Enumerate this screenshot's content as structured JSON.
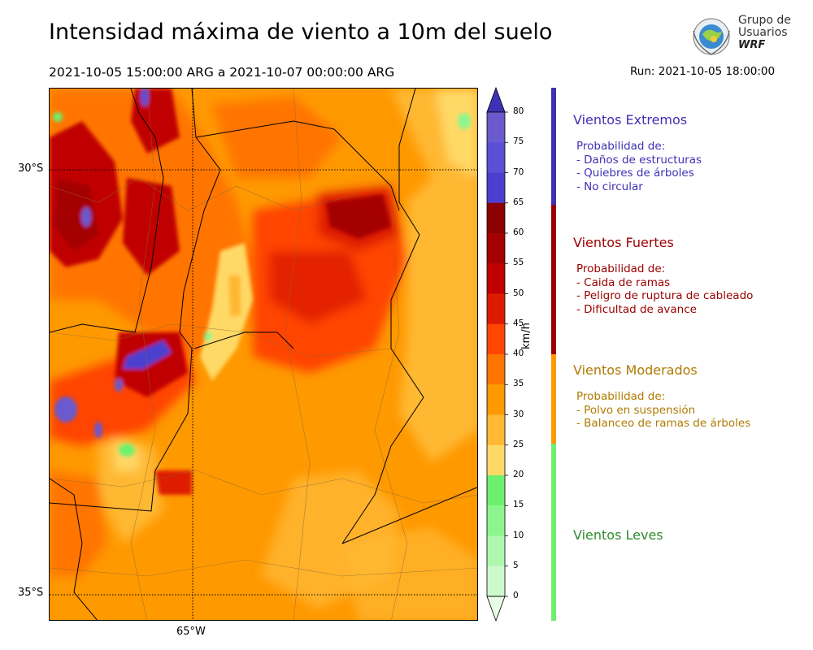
{
  "header": {
    "title": "Intensidad máxima de viento a 10m del suelo",
    "period": "2021-10-05 15:00:00 ARG  a  2021-10-07 00:00:00 ARG",
    "run": "Run: 2021-10-05 18:00:00"
  },
  "logo": {
    "line1": "Grupo de",
    "line2": "Usuarios",
    "line3": "WRF"
  },
  "map": {
    "lat_labels": [
      "30°S",
      "35°S"
    ],
    "lon_labels": [
      "65°W"
    ]
  },
  "colorbar": {
    "unit": "km/h",
    "ticks": [
      "80",
      "75",
      "70",
      "65",
      "60",
      "55",
      "50",
      "45",
      "40",
      "35",
      "30",
      "25",
      "20",
      "15",
      "10",
      "5",
      "0"
    ],
    "colors": [
      "#6a5acd",
      "#5b4fd6",
      "#4c3fcf",
      "#8b0000",
      "#a50000",
      "#c00000",
      "#dd1a00",
      "#ff4500",
      "#ff7400",
      "#ff9900",
      "#ffb833",
      "#ffd966",
      "#6ef06e",
      "#8df58d",
      "#aef7ae",
      "#cdfacd",
      "#e8fde8"
    ],
    "top_color": "#3f31b5"
  },
  "legend": [
    {
      "title": "Vientos Extremos",
      "color": "#3f31b5",
      "intro": "Probabilidad de:",
      "items": [
        "- Daños de estructuras",
        "- Quiebres de árboles",
        "- No circular"
      ]
    },
    {
      "title": "Vientos Fuertes",
      "color": "#9b0000",
      "intro": "Probabilidad de:",
      "items": [
        "- Caida de ramas",
        "- Peligro de ruptura de cableado",
        "- Dificultad de avance"
      ]
    },
    {
      "title": "Vientos Moderados",
      "color": "#b07a00",
      "bar_color": "#ff9900",
      "intro": "Probabilidad de:",
      "items": [
        "- Polvo en suspensión",
        "- Balanceo de ramas de árboles"
      ]
    },
    {
      "title": "Vientos Leves",
      "color": "#2e8b2e",
      "bar_color": "#6ef06e",
      "intro": "",
      "items": []
    }
  ]
}
